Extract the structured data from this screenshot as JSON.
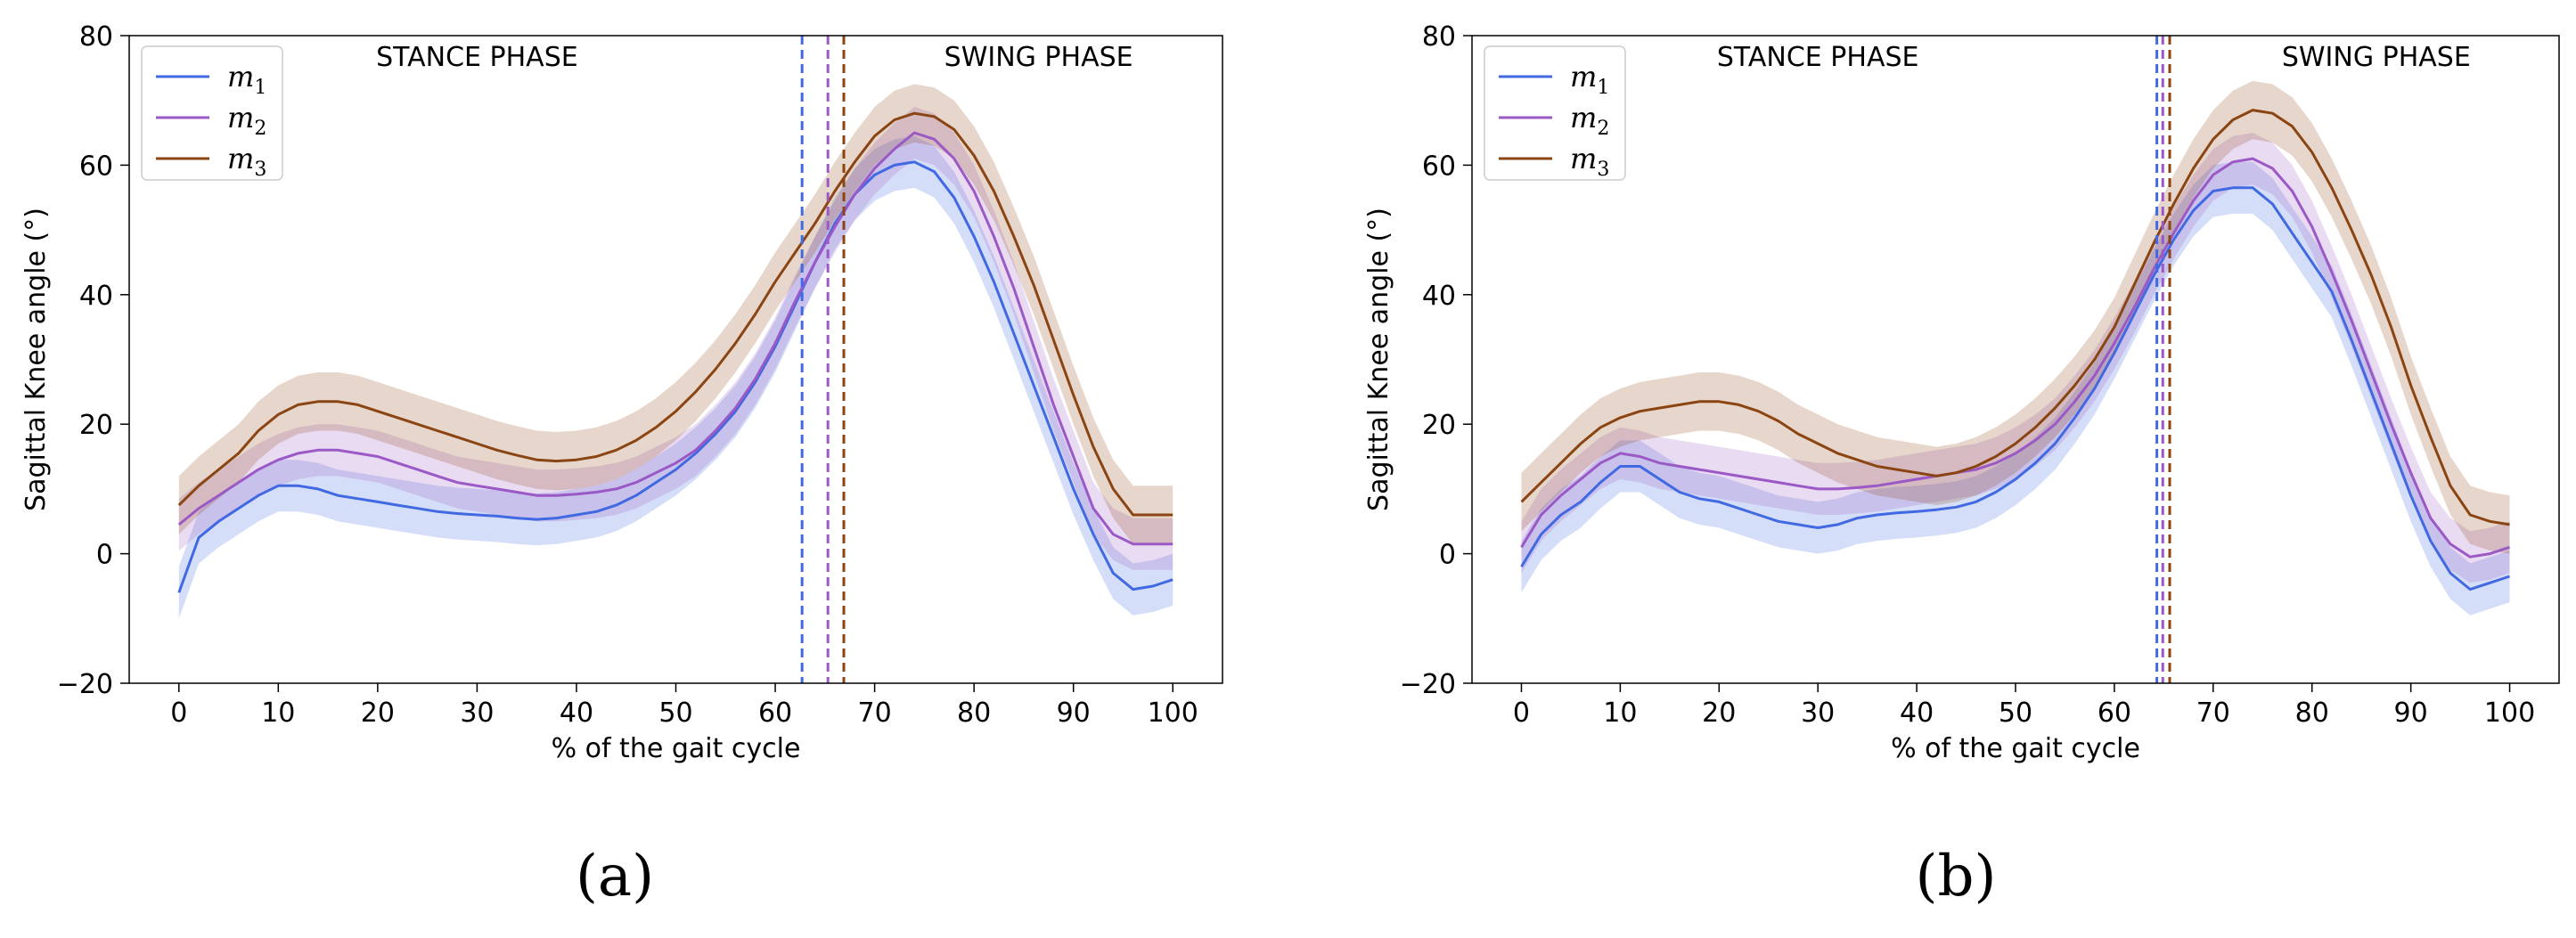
{
  "colors": {
    "m1": "#4169e1",
    "m2": "#9b59c6",
    "m3": "#8b4513"
  },
  "chart_data": [
    {
      "type": "line",
      "panel_label": "(a)",
      "xlabel": "% of the gait cycle",
      "ylabel": "Sagittal Knee angle (°)",
      "xlim": [
        -5,
        105
      ],
      "ylim": [
        -20,
        80
      ],
      "xticks": [
        0,
        10,
        20,
        30,
        40,
        50,
        60,
        70,
        80,
        90,
        100
      ],
      "yticks": [
        -20,
        0,
        20,
        40,
        60,
        80
      ],
      "legend_position": "top-left",
      "phase_labels": {
        "stance": "STANCE PHASE",
        "swing": "SWING PHASE"
      },
      "x": [
        0,
        2,
        4,
        6,
        8,
        10,
        12,
        14,
        16,
        18,
        20,
        22,
        24,
        26,
        28,
        30,
        32,
        34,
        36,
        38,
        40,
        42,
        44,
        46,
        48,
        50,
        52,
        54,
        56,
        58,
        60,
        62,
        64,
        66,
        68,
        70,
        72,
        74,
        76,
        78,
        80,
        82,
        84,
        86,
        88,
        90,
        92,
        94,
        96,
        98,
        100
      ],
      "series": [
        {
          "name": "m",
          "sub": "1",
          "color_key": "m1",
          "toe_off": 62.7,
          "band": 4.0,
          "values": [
            -6,
            2.5,
            5,
            7,
            9,
            10.5,
            10.5,
            10,
            9,
            8.5,
            8,
            7.5,
            7,
            6.5,
            6.2,
            6,
            5.8,
            5.5,
            5.3,
            5.5,
            6,
            6.5,
            7.5,
            9,
            11,
            13,
            15.5,
            18.5,
            22,
            26.5,
            32,
            38.5,
            45,
            51,
            55.5,
            58.5,
            60,
            60.5,
            59,
            55,
            49,
            42,
            34,
            26,
            18,
            10,
            3,
            -3,
            -5.5,
            -5,
            -4
          ]
        },
        {
          "name": "m",
          "sub": "2",
          "color_key": "m2",
          "toe_off": 65.3,
          "band": 4.0,
          "values": [
            4.5,
            7,
            9,
            11,
            13,
            14.5,
            15.5,
            16,
            16,
            15.5,
            15,
            14,
            13,
            12,
            11,
            10.5,
            10,
            9.5,
            9,
            9,
            9.2,
            9.5,
            10,
            11,
            12.5,
            14,
            16,
            19,
            22.5,
            27,
            32.5,
            39,
            45,
            50.5,
            55.5,
            59.5,
            62.5,
            65,
            64,
            61,
            56,
            49,
            41,
            32,
            23,
            15,
            7,
            3,
            1.5,
            1.5,
            1.5
          ]
        },
        {
          "name": "m",
          "sub": "3",
          "color_key": "m3",
          "toe_off": 66.9,
          "band": 4.5,
          "values": [
            7.5,
            10.5,
            13,
            15.5,
            19,
            21.5,
            23,
            23.5,
            23.5,
            23,
            22,
            21,
            20,
            19,
            18,
            17,
            16,
            15.2,
            14.5,
            14.3,
            14.5,
            15,
            16,
            17.5,
            19.5,
            22,
            25,
            28.5,
            32.5,
            37,
            42,
            46.5,
            51,
            56,
            60.5,
            64.5,
            67,
            68,
            67.5,
            65.5,
            61.5,
            56,
            49,
            41.5,
            33,
            24.5,
            16.5,
            10,
            6,
            6,
            6
          ]
        }
      ]
    },
    {
      "type": "line",
      "panel_label": "(b)",
      "xlabel": "% of the gait cycle",
      "ylabel": "Sagittal Knee angle (°)",
      "xlim": [
        -5,
        105
      ],
      "ylim": [
        -20,
        80
      ],
      "xticks": [
        0,
        10,
        20,
        30,
        40,
        50,
        60,
        70,
        80,
        90,
        100
      ],
      "yticks": [
        -20,
        0,
        20,
        40,
        60,
        80
      ],
      "legend_position": "top-left",
      "phase_labels": {
        "stance": "STANCE PHASE",
        "swing": "SWING PHASE"
      },
      "x": [
        0,
        2,
        4,
        6,
        8,
        10,
        12,
        14,
        16,
        18,
        20,
        22,
        24,
        26,
        28,
        30,
        32,
        34,
        36,
        38,
        40,
        42,
        44,
        46,
        48,
        50,
        52,
        54,
        56,
        58,
        60,
        62,
        64,
        66,
        68,
        70,
        72,
        74,
        76,
        78,
        80,
        82,
        84,
        86,
        88,
        90,
        92,
        94,
        96,
        98,
        100
      ],
      "series": [
        {
          "name": "m",
          "sub": "1",
          "color_key": "m1",
          "toe_off": 64.3,
          "band": 4.0,
          "values": [
            -2,
            3,
            6,
            8,
            11,
            13.5,
            13.5,
            11.5,
            9.5,
            8.5,
            8,
            7,
            6,
            5,
            4.5,
            4,
            4.5,
            5.5,
            6,
            6.3,
            6.5,
            6.8,
            7.2,
            8,
            9.5,
            11.5,
            14,
            17,
            21,
            25.5,
            31,
            37,
            43,
            48.5,
            53,
            56,
            56.5,
            56.5,
            54,
            49.5,
            45,
            40.5,
            33,
            25,
            17,
            9,
            2,
            -3,
            -5.5,
            -4.5,
            -3.5
          ]
        },
        {
          "name": "m",
          "sub": "2",
          "color_key": "m2",
          "toe_off": 64.9,
          "band": 4.0,
          "values": [
            1,
            6,
            9,
            11.5,
            14,
            15.5,
            15,
            14,
            13.5,
            13,
            12.5,
            12,
            11.5,
            11,
            10.5,
            10,
            10,
            10.2,
            10.5,
            11,
            11.5,
            12,
            12.5,
            13,
            14,
            15.5,
            17.5,
            20,
            23.5,
            27.5,
            32.5,
            38,
            44,
            49.5,
            54.5,
            58.5,
            60.5,
            61,
            59.5,
            56,
            50.5,
            43.5,
            36,
            28,
            20,
            12.5,
            5.5,
            1.5,
            -0.5,
            0,
            1
          ]
        },
        {
          "name": "m",
          "sub": "3",
          "color_key": "m3",
          "toe_off": 65.6,
          "band": 4.5,
          "values": [
            8,
            11,
            14,
            17,
            19.5,
            21,
            22,
            22.5,
            23,
            23.5,
            23.5,
            23,
            22,
            20.5,
            18.5,
            17,
            15.5,
            14.5,
            13.5,
            13,
            12.5,
            12,
            12.5,
            13.5,
            15,
            17,
            19.5,
            22.5,
            26,
            30,
            35,
            41.5,
            48,
            54,
            59.5,
            64,
            67,
            68.5,
            68,
            66,
            62,
            56.5,
            50,
            43,
            35,
            26,
            18,
            10.5,
            6,
            5,
            4.5
          ]
        }
      ]
    }
  ]
}
